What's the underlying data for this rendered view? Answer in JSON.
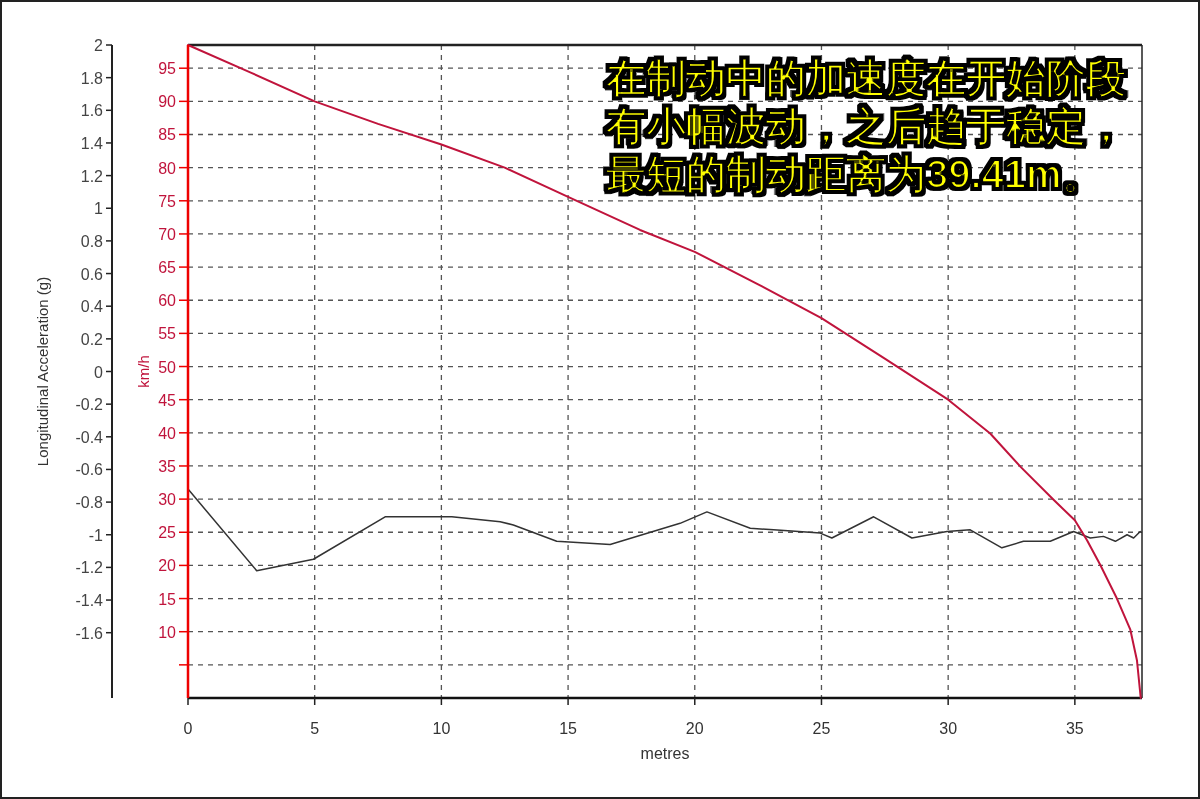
{
  "chart_data": {
    "type": "line",
    "xlabel": "metres",
    "ylabel": "Longitudinal Acceleration (g)",
    "y2label": "km/h",
    "annotations": [
      "在制动中的加速度在开始阶段有小幅波动，之后趋于稳定，最短的制动距离为39.41m。"
    ],
    "xlim": [
      0,
      37.65
    ],
    "xticks": [
      0,
      5,
      10,
      15,
      20,
      25,
      30,
      35
    ],
    "ylim": [
      -2,
      2
    ],
    "yticks": [
      -1.6,
      -1.4,
      -1.2,
      -1,
      -0.8,
      -0.6,
      -0.4,
      -0.2,
      0,
      0.2,
      0.4,
      0.6,
      0.8,
      1,
      1.2,
      1.4,
      1.6,
      1.8,
      2
    ],
    "y2lim": [
      0,
      98.5
    ],
    "y2ticks": [
      {
        "value": 5,
        "label": null
      },
      10,
      15,
      20,
      25,
      30,
      35,
      40,
      45,
      50,
      55,
      60,
      65,
      70,
      75,
      80,
      85,
      90,
      95
    ],
    "grid": true,
    "series": [
      {
        "color": "#333333",
        "x": [
          0,
          2.71,
          4.95,
          7.78,
          10.41,
          12.32,
          12.84,
          14.55,
          16.66,
          19.42,
          20.48,
          22.19,
          23.11,
          24.95,
          25.41,
          27.06,
          28.57,
          29.95,
          30.87,
          32.12,
          32.97,
          34.03,
          34.95,
          35.61,
          36.13,
          36.6,
          37.06,
          37.32,
          37.58
        ],
        "values": [
          -0.72,
          -1.22,
          -1.15,
          -0.89,
          -0.89,
          -0.92,
          -0.94,
          -1.04,
          -1.06,
          -0.93,
          -0.86,
          -0.96,
          -0.97,
          -0.99,
          -1.02,
          -0.89,
          -1.02,
          -0.98,
          -0.97,
          -1.08,
          -1.04,
          -1.04,
          -0.98,
          -1.02,
          -1.01,
          -1.04,
          -1.0,
          -1.02,
          -0.98
        ]
      },
      {
        "color": "#c0143c",
        "axis": "y2",
        "x": [
          0,
          2.5,
          5,
          7.5,
          10,
          12.5,
          15,
          17.84,
          20,
          22.5,
          25,
          27.5,
          30,
          31.66,
          32.85,
          34.16,
          35,
          35.48,
          36,
          36.66,
          37.19,
          37.45,
          37.6
        ],
        "values": [
          98.5,
          94.3,
          90,
          86.6,
          83.5,
          80,
          75.6,
          70.6,
          67.3,
          62.4,
          57.3,
          51.2,
          45,
          39.9,
          34.9,
          29.9,
          26.8,
          23.8,
          20.1,
          15,
          10.3,
          5.7,
          0
        ]
      }
    ]
  }
}
